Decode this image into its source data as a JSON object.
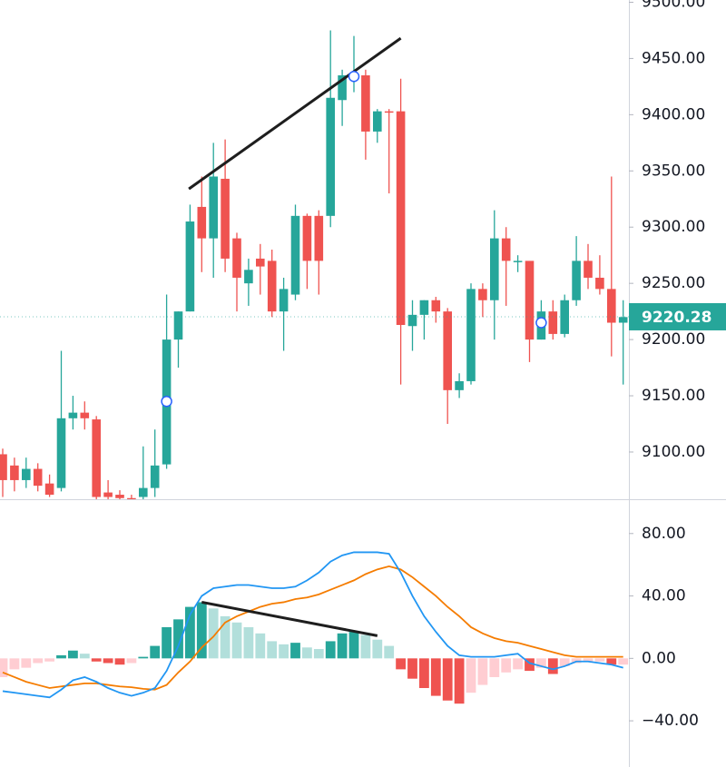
{
  "chart_data": [
    {
      "type": "candlestick",
      "up_color": "#26a69a",
      "down_color": "#ef5350",
      "open": [
        9098,
        9088,
        9075,
        9085,
        9072,
        9068,
        9130,
        9135,
        9129,
        9064,
        9062,
        9059,
        9060,
        9068,
        9089,
        9200,
        9225,
        9318,
        9290,
        9343,
        9290,
        9250,
        9272,
        9270,
        9225,
        9240,
        9310,
        9310,
        9310,
        9413,
        9435,
        9435,
        9385,
        9403,
        9403,
        9212,
        9222,
        9235,
        9225,
        9155,
        9163,
        9245,
        9235,
        9290,
        9270,
        9270,
        9200,
        9225,
        9205,
        9235,
        9270,
        9255,
        9245,
        9215
      ],
      "high": [
        9103,
        9095,
        9095,
        9090,
        9080,
        9190,
        9150,
        9145,
        9132,
        9075,
        9066,
        9062,
        9105,
        9120,
        9240,
        9225,
        9320,
        9345,
        9375,
        9378,
        9295,
        9272,
        9285,
        9280,
        9255,
        9320,
        9312,
        9315,
        9475,
        9440,
        9470,
        9440,
        9405,
        9405,
        9432,
        9235,
        9235,
        9238,
        9228,
        9170,
        9250,
        9250,
        9315,
        9300,
        9275,
        9268,
        9235,
        9235,
        9240,
        9292,
        9285,
        9275,
        9345,
        9235
      ],
      "low": [
        9060,
        9065,
        9068,
        9065,
        9060,
        9065,
        9120,
        9120,
        9058,
        9058,
        9058,
        9055,
        9058,
        9060,
        9085,
        9175,
        9225,
        9260,
        9255,
        9260,
        9225,
        9230,
        9240,
        9220,
        9190,
        9235,
        9245,
        9240,
        9300,
        9390,
        9420,
        9360,
        9375,
        9330,
        9160,
        9190,
        9200,
        9215,
        9125,
        9148,
        9160,
        9220,
        9200,
        9230,
        9260,
        9180,
        9200,
        9200,
        9202,
        9230,
        9245,
        9240,
        9185,
        9160
      ],
      "close": [
        9075,
        9075,
        9085,
        9070,
        9062,
        9130,
        9135,
        9130,
        9060,
        9060,
        9059,
        9058,
        9068,
        9088,
        9200,
        9225,
        9305,
        9290,
        9345,
        9272,
        9255,
        9262,
        9265,
        9225,
        9245,
        9310,
        9270,
        9270,
        9415,
        9435,
        9435,
        9385,
        9403,
        9402,
        9213,
        9222,
        9235,
        9225,
        9155,
        9163,
        9245,
        9235,
        9290,
        9270,
        9270,
        9200,
        9225,
        9205,
        9235,
        9270,
        9255,
        9245,
        9215,
        9220
      ],
      "ylim": [
        9058,
        9502
      ],
      "yticks": [
        {
          "value": 9100,
          "label": "9100.00"
        },
        {
          "value": 9150,
          "label": "9150.00"
        },
        {
          "value": 9200,
          "label": "9200.00"
        },
        {
          "value": 9250,
          "label": "9250.00"
        },
        {
          "value": 9300,
          "label": "9300.00"
        },
        {
          "value": 9350,
          "label": "9350.00"
        },
        {
          "value": 9400,
          "label": "9400.00"
        },
        {
          "value": 9450,
          "label": "9450.00"
        },
        {
          "value": 9500,
          "label": "9500.00"
        }
      ],
      "last_price": 9220.28,
      "trend_lines": [
        {
          "x": [
            15.9,
            34
          ],
          "y": [
            9334,
            9468
          ],
          "color": "#1e1e1e"
        }
      ],
      "markers": {
        "x": [
          14,
          30,
          46
        ],
        "y": [
          9145,
          9434,
          9215
        ]
      }
    },
    {
      "type": "macd",
      "histogram": {
        "values": [
          -12,
          -7,
          -6,
          -3,
          -2,
          2,
          5,
          3,
          -2,
          -3,
          -4,
          -3,
          1,
          8,
          20,
          25,
          33,
          36,
          32,
          27,
          23,
          20,
          16,
          11,
          9,
          10,
          7,
          6,
          11,
          16,
          17,
          15,
          12,
          8,
          -7,
          -13,
          -19,
          -24,
          -27,
          -29,
          -22,
          -17,
          -12,
          -9,
          -7,
          -8,
          -6,
          -10,
          -5,
          -3,
          -2,
          -2,
          -4,
          -4
        ],
        "colors": {
          "up_grow": "#26a69a",
          "up_fall": "#b2dfdb",
          "down_grow": "#ef5350",
          "down_fall": "#ffcdd2"
        }
      },
      "macd": {
        "color": "#2196f3",
        "values": [
          -21,
          -22,
          -23,
          -24,
          -25,
          -20,
          -14,
          -12,
          -15,
          -19,
          -22,
          -24,
          -22,
          -19,
          -8,
          8,
          28,
          40,
          45,
          46,
          47,
          47,
          46,
          45,
          45,
          46,
          50,
          55,
          62,
          66,
          68,
          68,
          68,
          67,
          55,
          40,
          27,
          17,
          8,
          2,
          1,
          1,
          1,
          2,
          3,
          -3,
          -5,
          -7,
          -5,
          -2,
          -2,
          -3,
          -4,
          -6
        ]
      },
      "signal": {
        "color": "#f57c00",
        "values": [
          -9,
          -12,
          -15,
          -17,
          -19,
          -18,
          -17,
          -16,
          -16,
          -17,
          -18,
          -18.5,
          -19.5,
          -20,
          -17,
          -9,
          -2,
          7,
          14,
          23,
          27,
          30,
          33,
          35,
          36,
          38,
          39,
          41,
          44,
          47,
          50,
          54,
          57,
          59,
          57,
          52,
          46,
          40,
          33,
          27,
          20,
          16,
          13,
          11,
          10,
          8,
          6,
          4,
          2,
          1,
          1,
          1,
          1,
          1
        ]
      },
      "ylim": [
        -69.6,
        101.4
      ],
      "yticks": [
        {
          "value": -40,
          "label": "−40.00"
        },
        {
          "value": 0,
          "label": "0.00"
        },
        {
          "value": 40,
          "label": "40.00"
        },
        {
          "value": 80,
          "label": "80.00"
        }
      ],
      "trend_lines": [
        {
          "x": [
            17,
            32
          ],
          "y": [
            36,
            14.5
          ],
          "color": "#1e1e1e"
        }
      ]
    }
  ]
}
